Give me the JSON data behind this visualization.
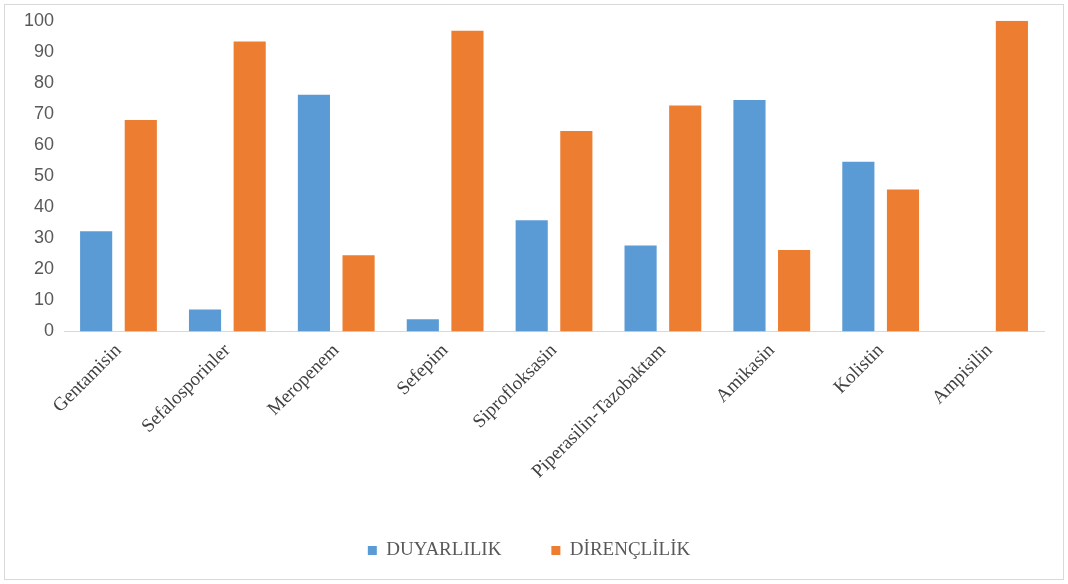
{
  "chart_data": {
    "type": "bar",
    "categories": [
      "Gentamisin",
      "Sefalosporinler",
      "Meropenem",
      "Sefepim",
      "Siprofloksasin",
      "Piperasilin-Tazobaktam",
      "Amikasin",
      "Kolistin",
      "Ampisilin"
    ],
    "series": [
      {
        "name": "DUYARLILIK",
        "color": "#5b9bd5",
        "values": [
          32.3,
          7.1,
          76.2,
          3.9,
          35.8,
          27.7,
          74.5,
          54.6,
          0
        ]
      },
      {
        "name": "DİRENÇLİLİK",
        "color": "#ed7d31",
        "values": [
          68.1,
          93.3,
          24.5,
          96.8,
          64.5,
          72.7,
          26.2,
          45.7,
          100
        ]
      }
    ],
    "ylim": [
      0,
      100
    ],
    "yticks": [
      0,
      10,
      20,
      30,
      40,
      50,
      60,
      70,
      80,
      90,
      100
    ],
    "grid": false,
    "legend": "bottom"
  }
}
